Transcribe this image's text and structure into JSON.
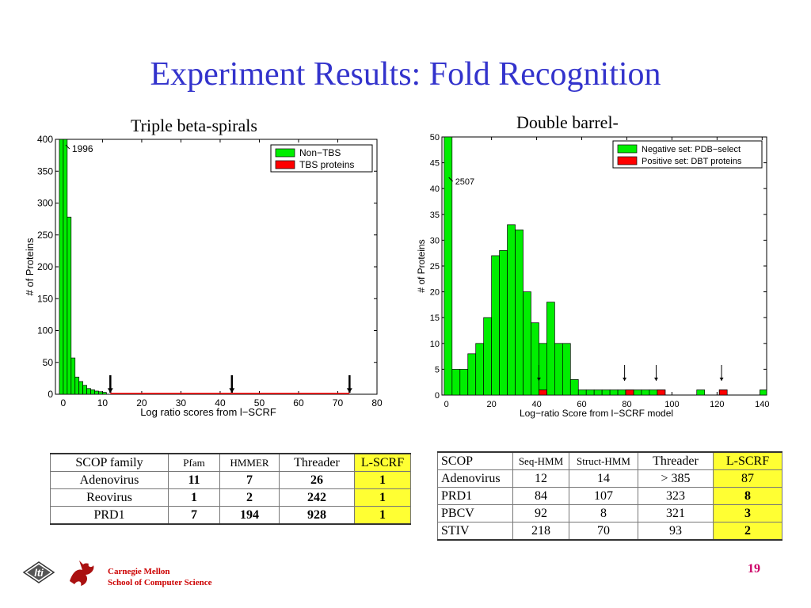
{
  "title": "Experiment Results: Fold Recognition",
  "footer": {
    "line1": "Carnegie Mellon",
    "line2": "School of Computer Science",
    "logo_text": "lti",
    "page": "19"
  },
  "chart_data": [
    {
      "type": "bar",
      "title": "Triple beta-spirals",
      "xlabel": "Log ratio scores from l−SCRF",
      "ylabel": "# of Proteins",
      "xlim": [
        -2,
        80
      ],
      "ylim": [
        0,
        400
      ],
      "xticks": [
        0,
        10,
        20,
        30,
        40,
        50,
        60,
        70,
        80
      ],
      "yticks": [
        0,
        50,
        100,
        150,
        200,
        250,
        300,
        350,
        400
      ],
      "bin_width": 1,
      "legend_position": "top-right",
      "series": [
        {
          "name": "Non−TBS",
          "color": "#00ee00",
          "x": [
            -1,
            0,
            1,
            2,
            3,
            4,
            5,
            6,
            7,
            8,
            9,
            10
          ],
          "values": [
            400,
            400,
            278,
            57,
            27,
            20,
            14,
            9,
            7,
            5,
            4,
            3
          ]
        },
        {
          "name": "TBS proteins",
          "color": "#ff0000",
          "x": [],
          "values": []
        }
      ],
      "red_line": [
        12,
        73
      ],
      "arrows": [
        12,
        43,
        73
      ],
      "annotation": {
        "text": "1996",
        "x": 0,
        "y": 390
      }
    },
    {
      "type": "bar",
      "title": "Double barrel-",
      "xlabel": "Log−ratio Score from l−SCRF model",
      "ylabel": "# of Proteins",
      "xlim": [
        -2,
        142
      ],
      "ylim": [
        0,
        50
      ],
      "xticks": [
        0,
        20,
        40,
        60,
        80,
        100,
        120,
        140
      ],
      "yticks": [
        0,
        5,
        10,
        15,
        20,
        25,
        30,
        35,
        40,
        45,
        50
      ],
      "bin_width": 3.5,
      "legend_position": "top-right",
      "series": [
        {
          "name": "Negative set: PDB−select",
          "color": "#00ee00",
          "x": [
            -1,
            2.5,
            6,
            9.5,
            13,
            16.5,
            20,
            23.5,
            27,
            30.5,
            34,
            37.5,
            41,
            44.5,
            48,
            51.5,
            55,
            58.5,
            62,
            65.5,
            69,
            72.5,
            76,
            79.5,
            83,
            86.5,
            90,
            93.5,
            111,
            121,
            139
          ],
          "values": [
            50,
            5,
            5,
            8,
            10,
            15,
            27,
            28,
            33,
            32,
            20,
            14,
            10,
            18,
            10,
            10,
            3,
            1,
            1,
            1,
            1,
            1,
            1,
            1,
            1,
            1,
            1,
            1,
            1,
            1,
            1
          ]
        },
        {
          "name": "Positive set: DBT proteins",
          "color": "#ff0000",
          "x": [
            41,
            79.5,
            93.5,
            121
          ],
          "values": [
            1,
            1,
            1,
            1
          ]
        }
      ],
      "arrows": [
        41,
        79,
        93,
        122
      ],
      "annotation": {
        "text": "2507",
        "x": 0,
        "y": 42
      }
    }
  ],
  "table1": {
    "headers": [
      "SCOP family",
      "Pfam",
      "HMMER",
      "Threader",
      "L-SCRF"
    ],
    "rows": [
      [
        "Adenovirus",
        "11",
        "7",
        "26",
        "1"
      ],
      [
        "Reovirus",
        "1",
        "2",
        "242",
        "1"
      ],
      [
        "PRD1",
        "7",
        "194",
        "928",
        "1"
      ]
    ]
  },
  "table2": {
    "headers": [
      "SCOP",
      "Seq-HMM",
      "Struct-HMM",
      "Threader",
      "L-SCRF"
    ],
    "rows": [
      [
        "Adenovirus",
        "12",
        "14",
        "> 385",
        "87"
      ],
      [
        "PRD1",
        "84",
        "107",
        "323",
        "8"
      ],
      [
        "PBCV",
        "92",
        "8",
        "321",
        "3"
      ],
      [
        "STIV",
        "218",
        "70",
        "93",
        "2"
      ]
    ]
  },
  "colors": {
    "title": "#3333cc",
    "highlight": "#ffff33",
    "bar_green": "#00ee00",
    "bar_red": "#ff0000",
    "footer": "#cc0000",
    "page_number": "#cc0066"
  }
}
